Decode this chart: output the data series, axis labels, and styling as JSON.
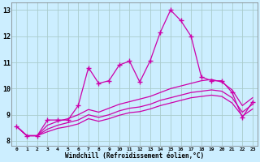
{
  "title": "",
  "xlabel": "Windchill (Refroidissement éolien,°C)",
  "bg_color": "#cceeff",
  "grid_color": "#aacccc",
  "line_color": "#cc00aa",
  "xlim": [
    -0.5,
    23.5
  ],
  "ylim": [
    7.8,
    13.3
  ],
  "yticks": [
    8,
    9,
    10,
    11,
    12,
    13
  ],
  "xticks": [
    0,
    1,
    2,
    3,
    4,
    5,
    6,
    7,
    8,
    9,
    10,
    11,
    12,
    13,
    14,
    15,
    16,
    17,
    18,
    19,
    20,
    21,
    22,
    23
  ],
  "series1_x": [
    0,
    1,
    2,
    3,
    4,
    5,
    6,
    7,
    8,
    9,
    10,
    11,
    12,
    13,
    14,
    15,
    16,
    17,
    18,
    19,
    20,
    21,
    22,
    23
  ],
  "series1_y": [
    8.55,
    8.2,
    8.2,
    8.8,
    8.8,
    8.8,
    9.35,
    10.8,
    10.2,
    10.3,
    10.9,
    11.05,
    10.25,
    11.05,
    12.15,
    13.0,
    12.6,
    12.0,
    10.45,
    10.3,
    10.3,
    9.85,
    8.9,
    9.5
  ],
  "series2_x": [
    0,
    1,
    2,
    3,
    4,
    5,
    6,
    7,
    8,
    9,
    10,
    11,
    12,
    13,
    14,
    15,
    16,
    17,
    18,
    19,
    20,
    21,
    22,
    23
  ],
  "series2_y": [
    8.55,
    8.2,
    8.2,
    8.6,
    8.75,
    8.85,
    9.0,
    9.2,
    9.1,
    9.25,
    9.4,
    9.5,
    9.6,
    9.7,
    9.85,
    10.0,
    10.1,
    10.2,
    10.3,
    10.35,
    10.25,
    9.95,
    9.35,
    9.65
  ],
  "series3_x": [
    0,
    1,
    2,
    3,
    4,
    5,
    6,
    7,
    8,
    9,
    10,
    11,
    12,
    13,
    14,
    15,
    16,
    17,
    18,
    19,
    20,
    21,
    22,
    23
  ],
  "series3_y": [
    8.55,
    8.2,
    8.2,
    8.45,
    8.6,
    8.7,
    8.8,
    9.0,
    8.9,
    9.0,
    9.15,
    9.25,
    9.3,
    9.4,
    9.55,
    9.65,
    9.75,
    9.85,
    9.9,
    9.95,
    9.9,
    9.65,
    9.1,
    9.4
  ],
  "series4_x": [
    0,
    1,
    2,
    3,
    4,
    5,
    6,
    7,
    8,
    9,
    10,
    11,
    12,
    13,
    14,
    15,
    16,
    17,
    18,
    19,
    20,
    21,
    22,
    23
  ],
  "series4_y": [
    8.55,
    8.2,
    8.2,
    8.35,
    8.48,
    8.55,
    8.65,
    8.85,
    8.75,
    8.85,
    8.98,
    9.08,
    9.12,
    9.22,
    9.35,
    9.45,
    9.55,
    9.65,
    9.7,
    9.75,
    9.7,
    9.45,
    8.95,
    9.22
  ]
}
